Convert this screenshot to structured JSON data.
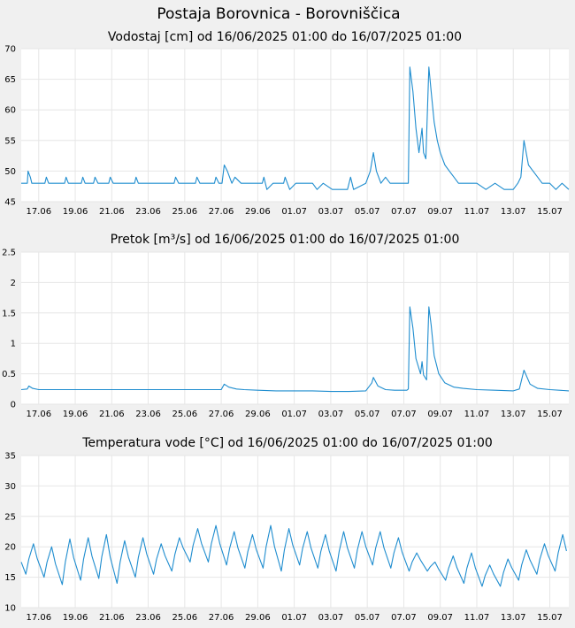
{
  "page_title": "Postaja Borovnica - Borovniščica",
  "colors": {
    "series": "#1f8dcf",
    "grid": "#e6e6e6",
    "plot_bg": "#ffffff",
    "page_bg": "#f0f0f0"
  },
  "chart_data": [
    {
      "type": "line",
      "title": "Vodostaj [cm] od 16/06/2025 01:00 do 16/07/2025 01:00",
      "x_axis_type": "date",
      "xlim": [
        "2025-06-16 01:00",
        "2025-07-16 01:00"
      ],
      "ylim": [
        45,
        70
      ],
      "yticks": [
        "45",
        "50",
        "55",
        "60",
        "65",
        "70"
      ],
      "xticks": [
        "17.06",
        "19.06",
        "21.06",
        "23.06",
        "25.06",
        "27.06",
        "29.06",
        "01.07",
        "03.07",
        "05.07",
        "07.07",
        "09.07",
        "11.07",
        "13.07",
        "15.07"
      ],
      "grid": true,
      "series": [
        {
          "values": [
            [
              "2025-06-16 01:00",
              48
            ],
            [
              "2025-06-16 09:00",
              48
            ],
            [
              "2025-06-16 10:00",
              50
            ],
            [
              "2025-06-16 13:00",
              49
            ],
            [
              "2025-06-16 15:00",
              48
            ],
            [
              "2025-06-17 08:00",
              48
            ],
            [
              "2025-06-17 10:00",
              49
            ],
            [
              "2025-06-17 13:00",
              48
            ],
            [
              "2025-06-18 10:00",
              48
            ],
            [
              "2025-06-18 12:00",
              49
            ],
            [
              "2025-06-18 15:00",
              48
            ],
            [
              "2025-06-19 08:00",
              48
            ],
            [
              "2025-06-19 10:00",
              49
            ],
            [
              "2025-06-19 13:00",
              48
            ],
            [
              "2025-06-20 00:00",
              48
            ],
            [
              "2025-06-20 02:00",
              49
            ],
            [
              "2025-06-20 06:00",
              48
            ],
            [
              "2025-06-20 20:00",
              48
            ],
            [
              "2025-06-20 22:00",
              49
            ],
            [
              "2025-06-21 02:00",
              48
            ],
            [
              "2025-06-22 06:00",
              48
            ],
            [
              "2025-06-22 08:00",
              49
            ],
            [
              "2025-06-22 11:00",
              48
            ],
            [
              "2025-06-24 10:00",
              48
            ],
            [
              "2025-06-24 12:00",
              49
            ],
            [
              "2025-06-24 16:00",
              48
            ],
            [
              "2025-06-25 14:00",
              48
            ],
            [
              "2025-06-25 16:00",
              49
            ],
            [
              "2025-06-25 20:00",
              48
            ],
            [
              "2025-06-26 15:00",
              48
            ],
            [
              "2025-06-26 17:00",
              49
            ],
            [
              "2025-06-26 21:00",
              48
            ],
            [
              "2025-06-27 01:00",
              48
            ],
            [
              "2025-06-27 04:00",
              51
            ],
            [
              "2025-06-27 08:00",
              50
            ],
            [
              "2025-06-27 14:00",
              48
            ],
            [
              "2025-06-27 18:00",
              49
            ],
            [
              "2025-06-28 02:00",
              48
            ],
            [
              "2025-06-29 06:00",
              48
            ],
            [
              "2025-06-29 08:00",
              49
            ],
            [
              "2025-06-29 12:00",
              47
            ],
            [
              "2025-06-29 20:00",
              48
            ],
            [
              "2025-06-30 10:00",
              48
            ],
            [
              "2025-06-30 12:00",
              49
            ],
            [
              "2025-06-30 18:00",
              47
            ],
            [
              "2025-07-01 02:00",
              48
            ],
            [
              "2025-07-02 00:00",
              48
            ],
            [
              "2025-07-02 06:00",
              47
            ],
            [
              "2025-07-02 14:00",
              48
            ],
            [
              "2025-07-03 02:00",
              47
            ],
            [
              "2025-07-03 22:00",
              47
            ],
            [
              "2025-07-04 02:00",
              49
            ],
            [
              "2025-07-04 06:00",
              47
            ],
            [
              "2025-07-04 22:00",
              48
            ],
            [
              "2025-07-05 04:00",
              50
            ],
            [
              "2025-07-05 08:00",
              53
            ],
            [
              "2025-07-05 12:00",
              50
            ],
            [
              "2025-07-05 18:00",
              48
            ],
            [
              "2025-07-06 00:00",
              49
            ],
            [
              "2025-07-06 06:00",
              48
            ],
            [
              "2025-07-06 20:00",
              48
            ],
            [
              "2025-07-07 02:00",
              48
            ],
            [
              "2025-07-07 06:00",
              48
            ],
            [
              "2025-07-07 08:00",
              67
            ],
            [
              "2025-07-07 12:00",
              63
            ],
            [
              "2025-07-07 16:00",
              57
            ],
            [
              "2025-07-07 20:00",
              53
            ],
            [
              "2025-07-08 00:00",
              57
            ],
            [
              "2025-07-08 02:00",
              53
            ],
            [
              "2025-07-08 05:00",
              52
            ],
            [
              "2025-07-08 09:00",
              67
            ],
            [
              "2025-07-08 12:00",
              63
            ],
            [
              "2025-07-08 16:00",
              58
            ],
            [
              "2025-07-08 20:00",
              55
            ],
            [
              "2025-07-09 00:00",
              53
            ],
            [
              "2025-07-09 06:00",
              51
            ],
            [
              "2025-07-09 12:00",
              50
            ],
            [
              "2025-07-09 18:00",
              49
            ],
            [
              "2025-07-10 00:00",
              48
            ],
            [
              "2025-07-10 12:00",
              48
            ],
            [
              "2025-07-11 00:00",
              48
            ],
            [
              "2025-07-11 12:00",
              47
            ],
            [
              "2025-07-12 00:00",
              48
            ],
            [
              "2025-07-12 12:00",
              47
            ],
            [
              "2025-07-13 00:00",
              47
            ],
            [
              "2025-07-13 06:00",
              48
            ],
            [
              "2025-07-13 10:00",
              49
            ],
            [
              "2025-07-13 14:00",
              55
            ],
            [
              "2025-07-13 20:00",
              51
            ],
            [
              "2025-07-14 02:00",
              50
            ],
            [
              "2025-07-14 08:00",
              49
            ],
            [
              "2025-07-14 14:00",
              48
            ],
            [
              "2025-07-15 00:00",
              48
            ],
            [
              "2025-07-15 08:00",
              47
            ],
            [
              "2025-07-15 16:00",
              48
            ],
            [
              "2025-07-16 01:00",
              47
            ]
          ]
        }
      ]
    },
    {
      "type": "line",
      "title": "Pretok [m³/s] od 16/06/2025 01:00 do 16/07/2025 01:00",
      "x_axis_type": "date",
      "xlim": [
        "2025-06-16 01:00",
        "2025-07-16 01:00"
      ],
      "ylim": [
        0,
        2.5
      ],
      "yticks": [
        "0",
        "0.5",
        "1",
        "1.5",
        "2",
        "2.5"
      ],
      "xticks": [
        "17.06",
        "19.06",
        "21.06",
        "23.06",
        "25.06",
        "27.06",
        "29.06",
        "01.07",
        "03.07",
        "05.07",
        "07.07",
        "09.07",
        "11.07",
        "13.07",
        "15.07"
      ],
      "grid": true,
      "series": [
        {
          "values": [
            [
              "2025-06-16 01:00",
              0.24
            ],
            [
              "2025-06-16 09:00",
              0.25
            ],
            [
              "2025-06-16 11:00",
              0.3
            ],
            [
              "2025-06-16 16:00",
              0.26
            ],
            [
              "2025-06-17 00:00",
              0.24
            ],
            [
              "2025-06-18 00:00",
              0.24
            ],
            [
              "2025-06-19 00:00",
              0.24
            ],
            [
              "2025-06-20 00:00",
              0.24
            ],
            [
              "2025-06-21 00:00",
              0.24
            ],
            [
              "2025-06-22 00:00",
              0.24
            ],
            [
              "2025-06-23 00:00",
              0.24
            ],
            [
              "2025-06-24 00:00",
              0.24
            ],
            [
              "2025-06-25 00:00",
              0.24
            ],
            [
              "2025-06-26 00:00",
              0.24
            ],
            [
              "2025-06-27 00:00",
              0.24
            ],
            [
              "2025-06-27 04:00",
              0.33
            ],
            [
              "2025-06-27 10:00",
              0.28
            ],
            [
              "2025-06-27 20:00",
              0.25
            ],
            [
              "2025-06-28 06:00",
              0.24
            ],
            [
              "2025-06-29 00:00",
              0.23
            ],
            [
              "2025-06-30 00:00",
              0.22
            ],
            [
              "2025-07-01 00:00",
              0.22
            ],
            [
              "2025-07-02 00:00",
              0.22
            ],
            [
              "2025-07-03 00:00",
              0.21
            ],
            [
              "2025-07-04 00:00",
              0.21
            ],
            [
              "2025-07-04 22:00",
              0.22
            ],
            [
              "2025-07-05 06:00",
              0.35
            ],
            [
              "2025-07-05 08:00",
              0.44
            ],
            [
              "2025-07-05 14:00",
              0.3
            ],
            [
              "2025-07-06 00:00",
              0.24
            ],
            [
              "2025-07-06 12:00",
              0.23
            ],
            [
              "2025-07-07 04:00",
              0.23
            ],
            [
              "2025-07-07 06:00",
              0.25
            ],
            [
              "2025-07-07 08:00",
              1.6
            ],
            [
              "2025-07-07 12:00",
              1.25
            ],
            [
              "2025-07-07 16:00",
              0.75
            ],
            [
              "2025-07-07 22:00",
              0.5
            ],
            [
              "2025-07-08 00:00",
              0.7
            ],
            [
              "2025-07-08 02:00",
              0.48
            ],
            [
              "2025-07-08 06:00",
              0.4
            ],
            [
              "2025-07-08 09:00",
              1.6
            ],
            [
              "2025-07-08 12:00",
              1.3
            ],
            [
              "2025-07-08 16:00",
              0.8
            ],
            [
              "2025-07-08 22:00",
              0.5
            ],
            [
              "2025-07-09 06:00",
              0.35
            ],
            [
              "2025-07-09 18:00",
              0.28
            ],
            [
              "2025-07-10 06:00",
              0.26
            ],
            [
              "2025-07-11 00:00",
              0.24
            ],
            [
              "2025-07-12 00:00",
              0.23
            ],
            [
              "2025-07-13 00:00",
              0.22
            ],
            [
              "2025-07-13 08:00",
              0.25
            ],
            [
              "2025-07-13 14:00",
              0.56
            ],
            [
              "2025-07-13 22:00",
              0.33
            ],
            [
              "2025-07-14 08:00",
              0.26
            ],
            [
              "2025-07-15 00:00",
              0.24
            ],
            [
              "2025-07-16 01:00",
              0.22
            ]
          ]
        }
      ]
    },
    {
      "type": "line",
      "title": "Temperatura vode [°C] od 16/06/2025 01:00 do 16/07/2025 01:00",
      "x_axis_type": "date",
      "xlim": [
        "2025-06-16 01:00",
        "2025-07-16 01:00"
      ],
      "ylim": [
        10,
        35
      ],
      "yticks": [
        "10",
        "15",
        "20",
        "25",
        "30",
        "35"
      ],
      "xticks": [
        "17.06",
        "19.06",
        "21.06",
        "23.06",
        "25.06",
        "27.06",
        "29.06",
        "01.07",
        "03.07",
        "05.07",
        "07.07",
        "09.07",
        "11.07",
        "13.07",
        "15.07"
      ],
      "grid": true,
      "series": [
        {
          "note_type": "daily_cycle",
          "daily": [
            {
              "date": "2025-06-16",
              "min": 15.5,
              "max": 20.5
            },
            {
              "date": "2025-06-17",
              "min": 15.0,
              "max": 20.0
            },
            {
              "date": "2025-06-18",
              "min": 13.8,
              "max": 21.3
            },
            {
              "date": "2025-06-19",
              "min": 14.5,
              "max": 21.5
            },
            {
              "date": "2025-06-20",
              "min": 14.8,
              "max": 22.0
            },
            {
              "date": "2025-06-21",
              "min": 14.0,
              "max": 21.0
            },
            {
              "date": "2025-06-22",
              "min": 15.0,
              "max": 21.5
            },
            {
              "date": "2025-06-23",
              "min": 15.5,
              "max": 20.5
            },
            {
              "date": "2025-06-24",
              "min": 16.0,
              "max": 21.5
            },
            {
              "date": "2025-06-25",
              "min": 17.5,
              "max": 23.0
            },
            {
              "date": "2025-06-26",
              "min": 17.5,
              "max": 23.5
            },
            {
              "date": "2025-06-27",
              "min": 17.0,
              "max": 22.5
            },
            {
              "date": "2025-06-28",
              "min": 16.5,
              "max": 22.0
            },
            {
              "date": "2025-06-29",
              "min": 16.5,
              "max": 23.5
            },
            {
              "date": "2025-06-30",
              "min": 16.0,
              "max": 23.0
            },
            {
              "date": "2025-07-01",
              "min": 17.0,
              "max": 22.5
            },
            {
              "date": "2025-07-02",
              "min": 16.5,
              "max": 22.0
            },
            {
              "date": "2025-07-03",
              "min": 16.0,
              "max": 22.5
            },
            {
              "date": "2025-07-04",
              "min": 16.5,
              "max": 22.5
            },
            {
              "date": "2025-07-05",
              "min": 17.0,
              "max": 22.5
            },
            {
              "date": "2025-07-06",
              "min": 16.5,
              "max": 21.5
            },
            {
              "date": "2025-07-07",
              "min": 16.0,
              "max": 19.0
            },
            {
              "date": "2025-07-08",
              "min": 16.0,
              "max": 17.5
            },
            {
              "date": "2025-07-09",
              "min": 14.5,
              "max": 18.5
            },
            {
              "date": "2025-07-10",
              "min": 14.0,
              "max": 19.0
            },
            {
              "date": "2025-07-11",
              "min": 13.5,
              "max": 17.0
            },
            {
              "date": "2025-07-12",
              "min": 13.5,
              "max": 18.0
            },
            {
              "date": "2025-07-13",
              "min": 14.5,
              "max": 19.5
            },
            {
              "date": "2025-07-14",
              "min": 15.5,
              "max": 20.5
            },
            {
              "date": "2025-07-15",
              "min": 16.0,
              "max": 22.0
            }
          ]
        }
      ]
    }
  ]
}
